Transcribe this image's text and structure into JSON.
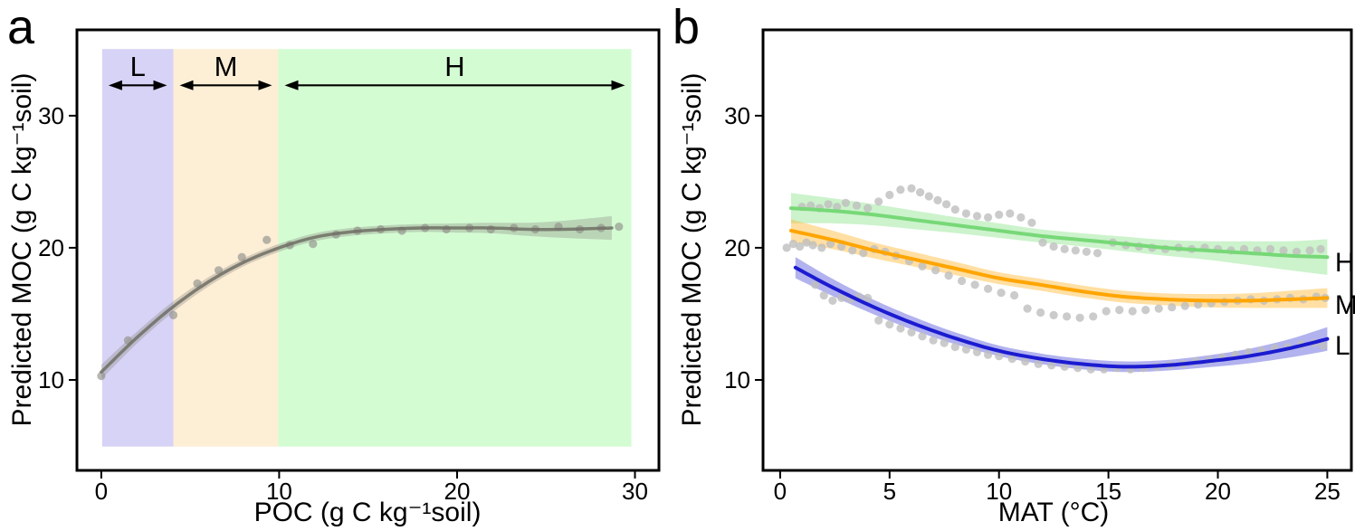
{
  "figure": {
    "panel_a": {
      "letter": "a",
      "x_label": "POC (g C kg⁻¹soil)",
      "y_label": "Predicted MOC (g C kg⁻¹soil)"
    },
    "panel_b": {
      "letter": "b",
      "x_label": "MAT (°C)",
      "y_label": "Predicted MOC (g C kg⁻¹soil)"
    }
  },
  "chart_data": [
    {
      "panel": "a",
      "type": "scatter",
      "title": "",
      "xlabel": "POC (g C kg⁻¹soil)",
      "ylabel": "Predicted MOC (g C kg⁻¹soil)",
      "xlim": [
        -1.37,
        31.35
      ],
      "ylim": [
        3.15,
        36.5
      ],
      "x_ticks": [
        0,
        10,
        20,
        30
      ],
      "y_ticks": [
        10,
        20,
        30
      ],
      "grid": false,
      "regions": [
        {
          "label": "L",
          "x_start": 0.05,
          "x_end": 4.05,
          "color": "#d7d3f6"
        },
        {
          "label": "M",
          "x_start": 4.05,
          "x_end": 9.95,
          "color": "#fdeed6"
        },
        {
          "label": "H",
          "x_start": 9.95,
          "x_end": 29.8,
          "color": "#d4fcd3"
        }
      ],
      "region_y": [
        4.95,
        35.05
      ],
      "arrow_y": 32.3,
      "region_label_y": 33.0,
      "arrow_color": "#000000",
      "series": [
        {
          "name": "smooth",
          "line_color": "#6e6e64",
          "line_opacity": 0.85,
          "band_color": "#84847a",
          "band_opacity": 0.32,
          "x": [
            0,
            2,
            4,
            6,
            8,
            10,
            12,
            14,
            16,
            18,
            20,
            22,
            24,
            26,
            28.7
          ],
          "y": [
            10.6,
            13.2,
            15.5,
            17.4,
            18.9,
            20.0,
            20.8,
            21.2,
            21.4,
            21.5,
            21.5,
            21.5,
            21.4,
            21.4,
            21.5
          ],
          "half_width": [
            0.55,
            0.45,
            0.4,
            0.35,
            0.3,
            0.3,
            0.3,
            0.3,
            0.3,
            0.3,
            0.35,
            0.4,
            0.5,
            0.65,
            0.9
          ]
        }
      ],
      "scatter_color": "#90908a",
      "scatter_opacity": 0.65,
      "scatter_groups": [
        {
          "name": "points",
          "xy": [
            [
              0,
              10.3
            ],
            [
              1.5,
              13.0
            ],
            [
              4.05,
              14.9
            ],
            [
              5.4,
              17.3
            ],
            [
              6.6,
              18.3
            ],
            [
              7.9,
              19.3
            ],
            [
              9.3,
              20.6
            ],
            [
              10.6,
              20.2
            ],
            [
              11.9,
              20.3
            ],
            [
              13.2,
              21.0
            ],
            [
              14.4,
              21.3
            ],
            [
              15.7,
              21.4
            ],
            [
              16.9,
              21.3
            ],
            [
              18.2,
              21.5
            ],
            [
              19.4,
              21.4
            ],
            [
              20.7,
              21.5
            ],
            [
              21.9,
              21.4
            ],
            [
              23.2,
              21.5
            ],
            [
              24.4,
              21.4
            ],
            [
              25.7,
              21.6
            ],
            [
              26.9,
              21.4
            ],
            [
              28.1,
              21.5
            ],
            [
              29.1,
              21.6
            ]
          ]
        }
      ]
    },
    {
      "panel": "b",
      "type": "scatter",
      "title": "",
      "xlabel": "MAT (°C)",
      "ylabel": "Predicted MOC (g C kg⁻¹soil)",
      "xlim": [
        -0.78,
        26.1
      ],
      "ylim": [
        3.15,
        36.5
      ],
      "x_ticks": [
        0,
        5,
        10,
        15,
        20,
        25
      ],
      "y_ticks": [
        10,
        20,
        30
      ],
      "grid": false,
      "series_label_x": 25.35,
      "series": [
        {
          "name": "H",
          "line_color": "#77d877",
          "line_opacity": 1,
          "band_color": "#8fe58f",
          "band_opacity": 0.45,
          "label_y": 18.2,
          "x": [
            0.5,
            2.4,
            4.3,
            6.2,
            8.1,
            10,
            11.9,
            13.8,
            15.7,
            17.6,
            19.5,
            21.4,
            23.3,
            25
          ],
          "y": [
            23.0,
            22.8,
            22.5,
            22.1,
            21.7,
            21.3,
            20.9,
            20.6,
            20.3,
            20.0,
            19.8,
            19.6,
            19.4,
            19.3
          ],
          "half_width": [
            1.15,
            0.95,
            0.8,
            0.7,
            0.6,
            0.55,
            0.5,
            0.5,
            0.55,
            0.6,
            0.7,
            0.9,
            1.1,
            1.35
          ]
        },
        {
          "name": "M",
          "line_color": "#ffa502",
          "line_opacity": 1,
          "band_color": "#ffb733",
          "band_opacity": 0.45,
          "label_y": 15.0,
          "x": [
            0.5,
            2.4,
            4.3,
            6.2,
            8.1,
            10,
            11.9,
            13.8,
            15.7,
            17.6,
            19.5,
            21.4,
            23.3,
            25
          ],
          "y": [
            21.3,
            20.6,
            19.8,
            19.1,
            18.4,
            17.7,
            17.2,
            16.7,
            16.3,
            16.1,
            16.0,
            16.0,
            16.1,
            16.2
          ],
          "half_width": [
            0.85,
            0.7,
            0.6,
            0.55,
            0.5,
            0.45,
            0.45,
            0.45,
            0.45,
            0.45,
            0.5,
            0.55,
            0.65,
            0.75
          ]
        },
        {
          "name": "L",
          "line_color": "#1b1bd1",
          "line_opacity": 1,
          "band_color": "#6666e0",
          "band_opacity": 0.5,
          "label_y": 11.9,
          "x": [
            0.7,
            2.4,
            4.3,
            6.2,
            8.1,
            10,
            11.9,
            13.8,
            15.7,
            17.6,
            19.5,
            21.4,
            23.3,
            25
          ],
          "y": [
            18.5,
            17.0,
            15.5,
            14.2,
            13.1,
            12.2,
            11.6,
            11.2,
            11.0,
            11.1,
            11.4,
            11.8,
            12.4,
            13.1
          ],
          "half_width": [
            0.8,
            0.65,
            0.55,
            0.5,
            0.45,
            0.4,
            0.4,
            0.4,
            0.4,
            0.4,
            0.45,
            0.55,
            0.7,
            0.9
          ]
        }
      ],
      "scatter_color": "#bebebe",
      "scatter_opacity": 0.8,
      "scatter_groups": [
        {
          "name": "H-points",
          "xy": [
            [
              1.0,
              23.1
            ],
            [
              1.4,
              23.2
            ],
            [
              1.8,
              23.0
            ],
            [
              2.2,
              23.3
            ],
            [
              2.6,
              23.1
            ],
            [
              3.0,
              23.4
            ],
            [
              3.5,
              23.2
            ],
            [
              4.0,
              23.0
            ],
            [
              4.5,
              23.5
            ],
            [
              5.0,
              24.0
            ],
            [
              5.5,
              24.4
            ],
            [
              6.0,
              24.5
            ],
            [
              6.4,
              24.2
            ],
            [
              6.8,
              23.9
            ],
            [
              7.2,
              23.6
            ],
            [
              7.6,
              23.3
            ],
            [
              8.0,
              22.9
            ],
            [
              8.5,
              22.6
            ],
            [
              9.0,
              22.4
            ],
            [
              9.5,
              22.3
            ],
            [
              10.0,
              22.5
            ],
            [
              10.5,
              22.6
            ],
            [
              11.0,
              22.3
            ],
            [
              11.5,
              21.9
            ],
            [
              12.0,
              20.4
            ],
            [
              12.5,
              20.1
            ],
            [
              13.0,
              19.9
            ],
            [
              13.5,
              19.8
            ],
            [
              14.0,
              19.7
            ],
            [
              14.5,
              19.6
            ],
            [
              15.2,
              20.4
            ],
            [
              15.8,
              20.2
            ],
            [
              16.4,
              20.1
            ],
            [
              17.0,
              20.0
            ],
            [
              17.6,
              19.9
            ],
            [
              18.2,
              20.0
            ],
            [
              18.8,
              19.9
            ],
            [
              19.4,
              20.0
            ],
            [
              20.0,
              19.9
            ],
            [
              20.6,
              19.8
            ],
            [
              21.2,
              19.9
            ],
            [
              21.8,
              19.8
            ],
            [
              22.4,
              19.9
            ],
            [
              23.0,
              19.8
            ],
            [
              23.6,
              19.7
            ],
            [
              24.2,
              19.8
            ],
            [
              24.7,
              19.9
            ]
          ]
        },
        {
          "name": "M-points",
          "xy": [
            [
              0.3,
              20.0
            ],
            [
              0.6,
              20.3
            ],
            [
              0.9,
              20.1
            ],
            [
              1.2,
              20.4
            ],
            [
              1.5,
              20.2
            ],
            [
              1.9,
              20.0
            ],
            [
              2.3,
              20.3
            ],
            [
              2.8,
              20.1
            ],
            [
              3.3,
              19.8
            ],
            [
              3.8,
              19.6
            ],
            [
              4.3,
              19.9
            ],
            [
              4.8,
              19.7
            ],
            [
              5.3,
              19.4
            ],
            [
              5.9,
              19.0
            ],
            [
              6.5,
              18.6
            ],
            [
              7.1,
              18.3
            ],
            [
              7.7,
              17.9
            ],
            [
              8.3,
              17.5
            ],
            [
              8.9,
              17.2
            ],
            [
              9.5,
              16.9
            ],
            [
              10.1,
              16.6
            ],
            [
              10.7,
              16.4
            ],
            [
              11.3,
              15.4
            ],
            [
              11.9,
              15.1
            ],
            [
              12.5,
              14.9
            ],
            [
              13.1,
              14.8
            ],
            [
              13.7,
              14.7
            ],
            [
              14.3,
              14.8
            ],
            [
              14.9,
              15.2
            ],
            [
              15.5,
              15.3
            ],
            [
              16.1,
              15.2
            ],
            [
              16.7,
              15.3
            ],
            [
              17.3,
              15.4
            ],
            [
              17.9,
              15.5
            ],
            [
              18.5,
              15.6
            ],
            [
              19.1,
              15.7
            ],
            [
              19.7,
              15.8
            ],
            [
              20.3,
              15.9
            ],
            [
              20.9,
              16.0
            ],
            [
              21.5,
              16.1
            ],
            [
              22.1,
              16.0
            ],
            [
              22.7,
              16.1
            ],
            [
              23.3,
              16.2
            ],
            [
              23.9,
              16.1
            ],
            [
              24.5,
              16.3
            ],
            [
              24.9,
              16.2
            ]
          ]
        },
        {
          "name": "L-points",
          "xy": [
            [
              1.6,
              17.2
            ],
            [
              2.0,
              16.4
            ],
            [
              2.4,
              16.0
            ],
            [
              2.8,
              16.2
            ],
            [
              3.2,
              16.1
            ],
            [
              3.6,
              16.3
            ],
            [
              4.0,
              16.2
            ],
            [
              4.5,
              14.5
            ],
            [
              5.0,
              14.2
            ],
            [
              5.5,
              13.9
            ],
            [
              6.0,
              13.6
            ],
            [
              6.5,
              13.3
            ],
            [
              7.0,
              13.0
            ],
            [
              7.5,
              12.8
            ],
            [
              8.0,
              12.5
            ],
            [
              8.5,
              12.3
            ],
            [
              9.0,
              12.1
            ],
            [
              9.5,
              11.9
            ],
            [
              10.0,
              11.8
            ],
            [
              10.6,
              11.6
            ],
            [
              11.2,
              11.4
            ],
            [
              11.8,
              11.2
            ],
            [
              12.4,
              11.1
            ],
            [
              13.0,
              11.0
            ],
            [
              13.6,
              10.9
            ],
            [
              14.2,
              10.8
            ],
            [
              14.8,
              10.8
            ],
            [
              15.4,
              10.9
            ],
            [
              16.0,
              10.8
            ],
            [
              16.6,
              10.9
            ],
            [
              17.2,
              11.0
            ],
            [
              17.8,
              11.1
            ],
            [
              18.4,
              11.2
            ],
            [
              19.0,
              11.4
            ],
            [
              19.6,
              11.5
            ],
            [
              20.2,
              11.7
            ],
            [
              20.8,
              11.9
            ],
            [
              21.4,
              12.1
            ],
            [
              22.0,
              12.2
            ],
            [
              22.6,
              12.4
            ],
            [
              23.2,
              12.5
            ],
            [
              23.8,
              12.7
            ],
            [
              24.4,
              12.8
            ],
            [
              24.8,
              12.6
            ]
          ]
        }
      ]
    }
  ]
}
